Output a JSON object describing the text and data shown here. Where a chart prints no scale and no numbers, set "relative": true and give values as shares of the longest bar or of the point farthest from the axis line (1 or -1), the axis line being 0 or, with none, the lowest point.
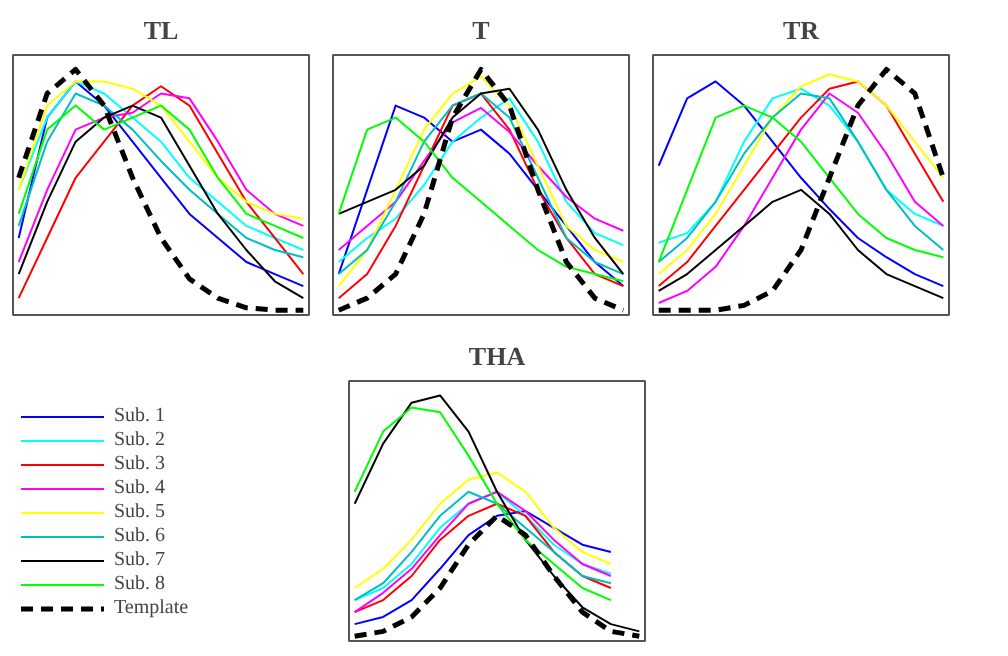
{
  "chart_data": [
    {
      "type": "line",
      "title": "TL",
      "relative": true,
      "grid": false,
      "legend": false,
      "categories": [
        null,
        null,
        null,
        null,
        null,
        null,
        null,
        null,
        null,
        null,
        null
      ],
      "series": [
        {
          "color": "#0000ff",
          "values": [
            0.3,
            0.8,
            0.95,
            0.85,
            0.7,
            0.55,
            0.4,
            0.3,
            0.2,
            0.15,
            0.1
          ]
        },
        {
          "color": "#00ffff",
          "values": [
            0.5,
            0.8,
            0.95,
            0.9,
            0.8,
            0.7,
            0.55,
            0.45,
            0.35,
            0.3,
            0.25
          ]
        },
        {
          "color": "#ff0000",
          "values": [
            0.05,
            0.3,
            0.55,
            0.7,
            0.85,
            0.93,
            0.85,
            0.65,
            0.45,
            0.3,
            0.15
          ]
        },
        {
          "color": "#ff00ff",
          "values": [
            0.2,
            0.5,
            0.75,
            0.8,
            0.82,
            0.9,
            0.88,
            0.7,
            0.5,
            0.4,
            0.35
          ]
        },
        {
          "color": "#ffff00",
          "values": [
            0.5,
            0.85,
            0.95,
            0.95,
            0.92,
            0.85,
            0.7,
            0.55,
            0.45,
            0.4,
            0.38
          ]
        },
        {
          "color": "#00bfbf",
          "values": [
            0.35,
            0.7,
            0.9,
            0.85,
            0.75,
            0.62,
            0.5,
            0.4,
            0.3,
            0.25,
            0.22
          ]
        },
        {
          "color": "#000000",
          "values": [
            0.15,
            0.45,
            0.7,
            0.8,
            0.85,
            0.8,
            0.6,
            0.4,
            0.25,
            0.12,
            0.05
          ]
        },
        {
          "color": "#00ff00",
          "values": [
            0.4,
            0.75,
            0.85,
            0.75,
            0.8,
            0.85,
            0.75,
            0.55,
            0.4,
            0.35,
            0.3
          ]
        },
        {
          "color": "#000000",
          "line_style": "dashed",
          "values": [
            0.55,
            0.9,
            1.0,
            0.85,
            0.55,
            0.3,
            0.13,
            0.05,
            0.01,
            0,
            0
          ]
        }
      ]
    },
    {
      "type": "line",
      "title": "T",
      "relative": true,
      "grid": false,
      "legend": false,
      "categories": [
        null,
        null,
        null,
        null,
        null,
        null,
        null,
        null,
        null,
        null,
        null
      ],
      "series": [
        {
          "color": "#0000ff",
          "values": [
            0.15,
            0.5,
            0.85,
            0.8,
            0.7,
            0.75,
            0.65,
            0.5,
            0.35,
            0.2,
            0.1
          ]
        },
        {
          "color": "#00ffff",
          "values": [
            0.2,
            0.3,
            0.38,
            0.52,
            0.7,
            0.8,
            0.88,
            0.7,
            0.45,
            0.32,
            0.27
          ]
        },
        {
          "color": "#ff0000",
          "values": [
            0.05,
            0.15,
            0.35,
            0.6,
            0.85,
            0.9,
            0.75,
            0.5,
            0.3,
            0.15,
            0.1
          ]
        },
        {
          "color": "#ff00ff",
          "values": [
            0.25,
            0.35,
            0.45,
            0.62,
            0.78,
            0.84,
            0.74,
            0.6,
            0.47,
            0.38,
            0.33
          ]
        },
        {
          "color": "#ffff00",
          "values": [
            0.1,
            0.25,
            0.5,
            0.75,
            0.9,
            0.97,
            0.85,
            0.6,
            0.35,
            0.25,
            0.2
          ]
        },
        {
          "color": "#00bfbf",
          "values": [
            0.15,
            0.25,
            0.45,
            0.7,
            0.85,
            0.9,
            0.8,
            0.55,
            0.3,
            0.2,
            0.15
          ]
        },
        {
          "color": "#000000",
          "values": [
            0.4,
            0.45,
            0.5,
            0.6,
            0.8,
            0.9,
            0.92,
            0.75,
            0.5,
            0.3,
            0.15
          ]
        },
        {
          "color": "#00ff00",
          "values": [
            0.4,
            0.75,
            0.8,
            0.7,
            0.55,
            0.45,
            0.35,
            0.25,
            0.18,
            0.15,
            0.12
          ]
        },
        {
          "color": "#000000",
          "line_style": "dashed",
          "values": [
            0.0,
            0.05,
            0.15,
            0.4,
            0.8,
            1.0,
            0.85,
            0.5,
            0.2,
            0.05,
            0.0
          ]
        }
      ]
    },
    {
      "type": "line",
      "title": "TR",
      "relative": true,
      "grid": false,
      "legend": false,
      "categories": [
        null,
        null,
        null,
        null,
        null,
        null,
        null,
        null,
        null,
        null,
        null
      ],
      "series": [
        {
          "color": "#0000ff",
          "values": [
            0.6,
            0.88,
            0.95,
            0.85,
            0.7,
            0.55,
            0.42,
            0.3,
            0.22,
            0.15,
            0.1
          ]
        },
        {
          "color": "#00ffff",
          "values": [
            0.28,
            0.32,
            0.45,
            0.7,
            0.88,
            0.92,
            0.85,
            0.7,
            0.5,
            0.4,
            0.35
          ]
        },
        {
          "color": "#ff0000",
          "values": [
            0.1,
            0.2,
            0.35,
            0.5,
            0.65,
            0.8,
            0.92,
            0.95,
            0.85,
            0.65,
            0.45
          ]
        },
        {
          "color": "#ff00ff",
          "values": [
            0.03,
            0.08,
            0.18,
            0.35,
            0.55,
            0.75,
            0.9,
            0.82,
            0.65,
            0.45,
            0.35
          ]
        },
        {
          "color": "#ffff00",
          "values": [
            0.15,
            0.25,
            0.4,
            0.6,
            0.8,
            0.93,
            0.98,
            0.95,
            0.85,
            0.7,
            0.55
          ]
        },
        {
          "color": "#00bfbf",
          "values": [
            0.2,
            0.3,
            0.45,
            0.65,
            0.8,
            0.9,
            0.88,
            0.7,
            0.5,
            0.35,
            0.25
          ]
        },
        {
          "color": "#000000",
          "values": [
            0.08,
            0.15,
            0.25,
            0.35,
            0.45,
            0.5,
            0.4,
            0.25,
            0.15,
            0.1,
            0.05
          ]
        },
        {
          "color": "#00ff00",
          "values": [
            0.2,
            0.5,
            0.8,
            0.85,
            0.8,
            0.7,
            0.55,
            0.4,
            0.3,
            0.25,
            0.22
          ]
        },
        {
          "color": "#000000",
          "line_style": "dashed",
          "values": [
            0,
            0,
            0,
            0.02,
            0.08,
            0.25,
            0.55,
            0.85,
            1.0,
            0.9,
            0.55
          ]
        }
      ]
    },
    {
      "type": "line",
      "title": "THA",
      "relative": true,
      "grid": false,
      "legend": "left",
      "categories": [
        null,
        null,
        null,
        null,
        null,
        null,
        null,
        null,
        null,
        null,
        null
      ],
      "series": [
        {
          "name": "Sub. 1",
          "color": "#0000ff",
          "values": [
            0.05,
            0.08,
            0.15,
            0.28,
            0.42,
            0.5,
            0.52,
            0.45,
            0.38,
            0.35,
            null
          ]
        },
        {
          "name": "Sub. 2",
          "color": "#00ffff",
          "values": [
            0.15,
            0.2,
            0.3,
            0.45,
            0.55,
            0.6,
            0.5,
            0.38,
            0.3,
            0.26,
            null
          ]
        },
        {
          "name": "Sub. 3",
          "color": "#ff0000",
          "values": [
            0.1,
            0.15,
            0.25,
            0.4,
            0.5,
            0.55,
            0.5,
            0.35,
            0.25,
            0.2,
            null
          ]
        },
        {
          "name": "Sub. 4",
          "color": "#ff00ff",
          "values": [
            0.1,
            0.18,
            0.28,
            0.42,
            0.55,
            0.6,
            0.52,
            0.4,
            0.3,
            0.25,
            null
          ]
        },
        {
          "name": "Sub. 5",
          "color": "#ffff00",
          "values": [
            0.2,
            0.28,
            0.4,
            0.55,
            0.65,
            0.68,
            0.6,
            0.45,
            0.35,
            0.3,
            null
          ]
        },
        {
          "name": "Sub. 6",
          "color": "#00bfbf",
          "values": [
            0.15,
            0.22,
            0.35,
            0.5,
            0.6,
            0.55,
            0.45,
            0.35,
            0.25,
            0.22,
            null
          ]
        },
        {
          "name": "Sub. 7",
          "color": "#000000",
          "values": [
            0.55,
            0.8,
            0.97,
            1.0,
            0.85,
            0.6,
            0.4,
            0.25,
            0.12,
            0.05,
            0.02
          ]
        },
        {
          "name": "Sub. 8",
          "color": "#00ff00",
          "values": [
            0.6,
            0.85,
            0.95,
            0.93,
            0.75,
            0.55,
            0.4,
            0.3,
            0.2,
            0.15,
            null
          ]
        },
        {
          "name": "Template",
          "color": "#000000",
          "line_style": "dashed",
          "values": [
            0.0,
            0.02,
            0.08,
            0.2,
            0.38,
            0.5,
            0.42,
            0.25,
            0.1,
            0.02,
            0.0
          ]
        }
      ]
    }
  ]
}
